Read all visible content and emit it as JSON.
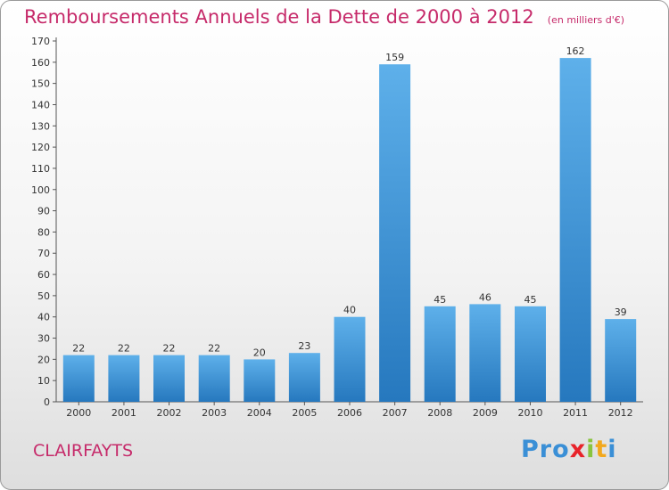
{
  "title": "Remboursements Annuels de la Dette de 2000 à 2012",
  "subtitle": "(en milliers d'€)",
  "commune": "CLAIRFAYTS",
  "logo": {
    "letters": [
      "P",
      "r",
      "o",
      "x",
      "i",
      "t",
      "i"
    ],
    "colors": [
      "#3a8fd6",
      "#3a8fd6",
      "#3a8fd6",
      "#e8232a",
      "#8ac43f",
      "#f2a81d",
      "#3a8fd6"
    ]
  },
  "chart_data": {
    "type": "bar",
    "categories": [
      "2000",
      "2001",
      "2002",
      "2003",
      "2004",
      "2005",
      "2006",
      "2007",
      "2008",
      "2009",
      "2010",
      "2011",
      "2012"
    ],
    "values": [
      22,
      22,
      22,
      22,
      20,
      23,
      40,
      159,
      45,
      46,
      45,
      162,
      39
    ],
    "ylim": [
      0,
      170
    ],
    "yticks": [
      0,
      10,
      20,
      30,
      40,
      50,
      60,
      70,
      80,
      90,
      100,
      110,
      120,
      130,
      140,
      150,
      160,
      170
    ],
    "grid": false,
    "bar_color": "#3a90d8"
  }
}
